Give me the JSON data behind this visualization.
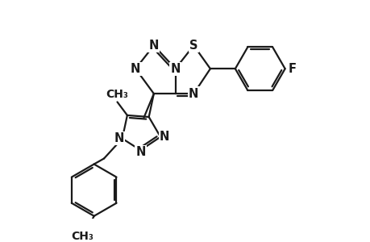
{
  "bg_color": "#ffffff",
  "line_color": "#1a1a1a",
  "line_width": 1.6,
  "font_size": 10.5,
  "figsize": [
    4.6,
    3.0
  ],
  "dpi": 100,
  "xlim": [
    0,
    10
  ],
  "ylim": [
    0,
    6.5
  ]
}
